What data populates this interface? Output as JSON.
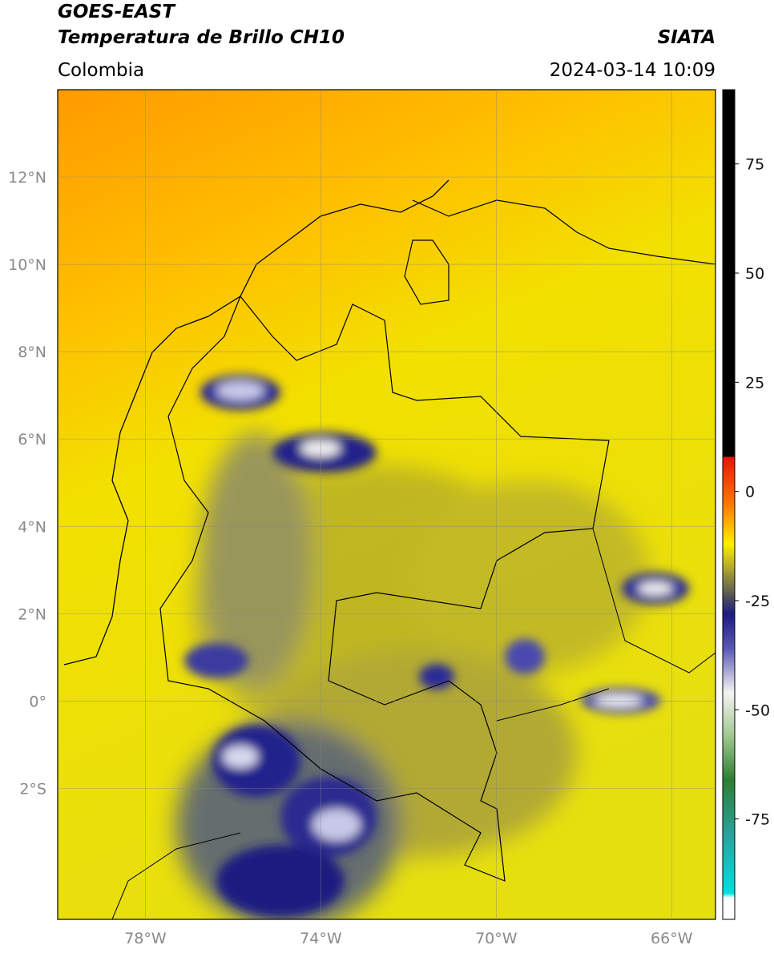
{
  "header": {
    "title": "GOES-EAST",
    "subtitle": "Temperatura de Brillo CH10",
    "source": "SIATA",
    "region": "Colombia",
    "timestamp": "2024-03-14 10:09"
  },
  "map": {
    "lonlim": [
      -80,
      -65
    ],
    "latlim": [
      -5,
      14
    ],
    "lon_ticks": [
      {
        "value": -78,
        "label": "78°W"
      },
      {
        "value": -74,
        "label": "74°W"
      },
      {
        "value": -70,
        "label": "70°W"
      },
      {
        "value": -66,
        "label": "66°W"
      }
    ],
    "lat_ticks": [
      {
        "value": 12,
        "label": "12°N"
      },
      {
        "value": 10,
        "label": "10°N"
      },
      {
        "value": 8,
        "label": "8°N"
      },
      {
        "value": 6,
        "label": "6°N"
      },
      {
        "value": 4,
        "label": "4°N"
      },
      {
        "value": 2,
        "label": "2°N"
      },
      {
        "value": 0,
        "label": "0°"
      },
      {
        "value": -2,
        "label": "2°S"
      }
    ],
    "grid": true
  },
  "colorbar": {
    "lim": [
      -98,
      92
    ],
    "ticks": [
      75,
      50,
      25,
      0,
      -25,
      -50,
      -75
    ],
    "stops": [
      {
        "value": 92,
        "color": "#000000"
      },
      {
        "value": 8,
        "color": "#000000"
      },
      {
        "value": 7.9,
        "color": "#e8130b"
      },
      {
        "value": -3,
        "color": "#ff7a00"
      },
      {
        "value": -12,
        "color": "#ffef00"
      },
      {
        "value": -18,
        "color": "#a8a030"
      },
      {
        "value": -23,
        "color": "#606050"
      },
      {
        "value": -28,
        "color": "#1a1a80"
      },
      {
        "value": -36,
        "color": "#5a5ab4"
      },
      {
        "value": -46,
        "color": "#f4f4f4"
      },
      {
        "value": -56,
        "color": "#a0c890"
      },
      {
        "value": -66,
        "color": "#2e7d32"
      },
      {
        "value": -78,
        "color": "#2aa198"
      },
      {
        "value": -92,
        "color": "#00e0e0"
      },
      {
        "value": -93,
        "color": "#ffffff"
      },
      {
        "value": -98,
        "color": "#ffffff"
      }
    ]
  }
}
